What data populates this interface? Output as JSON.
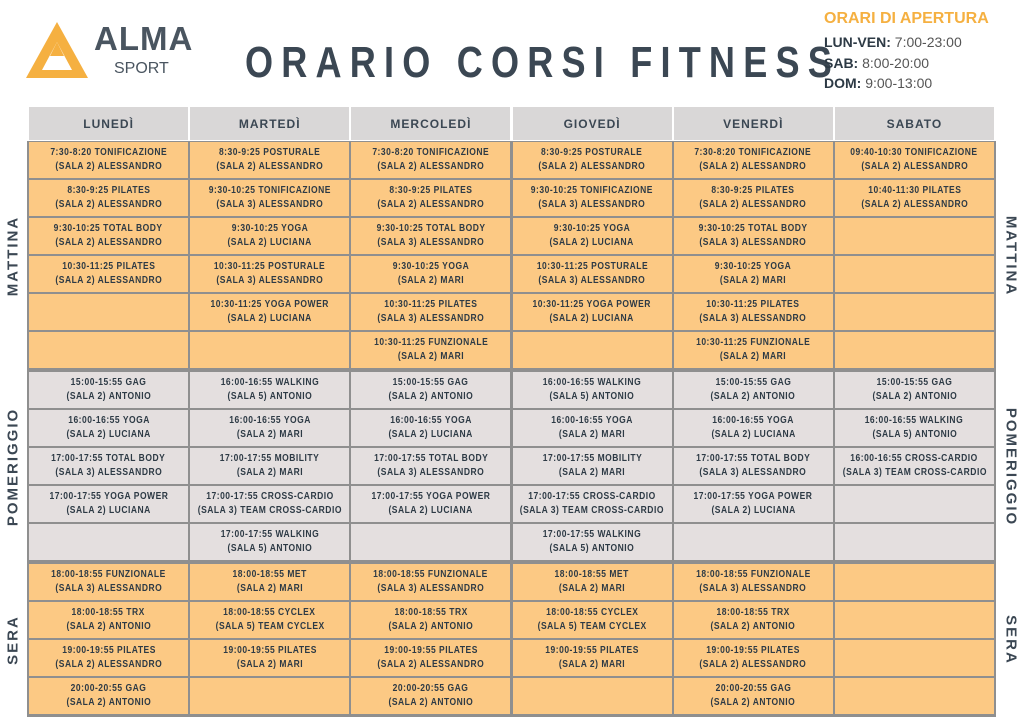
{
  "header": {
    "logo": {
      "name": "ALMA",
      "sub": "SPORT"
    },
    "title": "ORARIO CORSI FITNESS",
    "hours": {
      "title": "ORARI DI APERTURA",
      "rows": [
        [
          "LUN-VEN:",
          "7:00-23:00"
        ],
        [
          "SAB:",
          "8:00-20:00"
        ],
        [
          "DOM:",
          "9:00-13:00"
        ]
      ]
    }
  },
  "table": {
    "days": [
      "LUNEDÌ",
      "MARTEDÌ",
      "MERCOLEDÌ",
      "GIOVEDÌ",
      "VENERDÌ",
      "SABATO"
    ],
    "sections": [
      {
        "label": "MATTINA",
        "rows": [
          [
            [
              "7:30-8:20 TONIFICAZIONE",
              "(SALA 2) ALESSANDRO"
            ],
            [
              "8:30-9:25 POSTURALE",
              "(SALA 2) ALESSANDRO"
            ],
            [
              "7:30-8:20 TONIFICAZIONE",
              "(SALA 2) ALESSANDRO"
            ],
            [
              "8:30-9:25 POSTURALE",
              "(SALA 2) ALESSANDRO"
            ],
            [
              "7:30-8:20 TONIFICAZIONE",
              "(SALA 2) ALESSANDRO"
            ],
            [
              "09:40-10:30 TONIFICAZIONE",
              "(SALA 2) ALESSANDRO"
            ]
          ],
          [
            [
              "8:30-9:25 PILATES",
              "(SALA 2) ALESSANDRO"
            ],
            [
              "9:30-10:25 TONIFICAZIONE",
              "(SALA 3) ALESSANDRO"
            ],
            [
              "8:30-9:25 PILATES",
              "(SALA 2) ALESSANDRO"
            ],
            [
              "9:30-10:25 TONIFICAZIONE",
              "(SALA 3) ALESSANDRO"
            ],
            [
              "8:30-9:25 PILATES",
              "(SALA 2) ALESSANDRO"
            ],
            [
              "10:40-11:30 PILATES",
              "(SALA 2) ALESSANDRO"
            ]
          ],
          [
            [
              "9:30-10:25 TOTAL BODY",
              "(SALA 2) ALESSANDRO"
            ],
            [
              "9:30-10:25 YOGA",
              "(SALA 2) LUCIANA"
            ],
            [
              "9:30-10:25 TOTAL BODY",
              "(SALA 3) ALESSANDRO"
            ],
            [
              "9:30-10:25 YOGA",
              "(SALA 2) LUCIANA"
            ],
            [
              "9:30-10:25 TOTAL BODY",
              "(SALA 3) ALESSANDRO"
            ],
            null
          ],
          [
            [
              "10:30-11:25 PILATES",
              "(SALA 2) ALESSANDRO"
            ],
            [
              "10:30-11:25 POSTURALE",
              "(SALA 3) ALESSANDRO"
            ],
            [
              "9:30-10:25 YOGA",
              "(SALA 2) MARI"
            ],
            [
              "10:30-11:25 POSTURALE",
              "(SALA 3) ALESSANDRO"
            ],
            [
              "9:30-10:25 YOGA",
              "(SALA 2) MARI"
            ],
            null
          ],
          [
            null,
            [
              "10:30-11:25 YOGA POWER",
              "(SALA 2) LUCIANA"
            ],
            [
              "10:30-11:25 PILATES",
              "(SALA 3) ALESSANDRO"
            ],
            [
              "10:30-11:25 YOGA POWER",
              "(SALA 2) LUCIANA"
            ],
            [
              "10:30-11:25 PILATES",
              "(SALA 3) ALESSANDRO"
            ],
            null
          ],
          [
            null,
            null,
            [
              "10:30-11:25 FUNZIONALE",
              "(SALA 2) MARI"
            ],
            null,
            [
              "10:30-11:25 FUNZIONALE",
              "(SALA 2) MARI"
            ],
            null
          ]
        ]
      },
      {
        "label": "POMERIGGIO",
        "rows": [
          [
            [
              "15:00-15:55 GAG",
              "(SALA 2) ANTONIO"
            ],
            [
              "16:00-16:55 WALKING",
              "(SALA 5) ANTONIO"
            ],
            [
              "15:00-15:55 GAG",
              "(SALA 2) ANTONIO"
            ],
            [
              "16:00-16:55 WALKING",
              "(SALA 5) ANTONIO"
            ],
            [
              "15:00-15:55 GAG",
              "(SALA 2) ANTONIO"
            ],
            [
              "15:00-15:55 GAG",
              "(SALA 2) ANTONIO"
            ]
          ],
          [
            [
              "16:00-16:55 YOGA",
              "(SALA 2) LUCIANA"
            ],
            [
              "16:00-16:55 YOGA",
              "(SALA 2) MARI"
            ],
            [
              "16:00-16:55 YOGA",
              "(SALA 2) LUCIANA"
            ],
            [
              "16:00-16:55 YOGA",
              "(SALA 2) MARI"
            ],
            [
              "16:00-16:55 YOGA",
              "(SALA 2) LUCIANA"
            ],
            [
              "16:00-16:55 WALKING",
              "(SALA 5) ANTONIO"
            ]
          ],
          [
            [
              "17:00-17:55 TOTAL BODY",
              "(SALA 3) ALESSANDRO"
            ],
            [
              "17:00-17:55 MOBILITY",
              "(SALA 2) MARI"
            ],
            [
              "17:00-17:55 TOTAL BODY",
              "(SALA 3) ALESSANDRO"
            ],
            [
              "17:00-17:55 MOBILITY",
              "(SALA 2) MARI"
            ],
            [
              "17:00-17:55 TOTAL BODY",
              "(SALA 3) ALESSANDRO"
            ],
            [
              "16:00-16:55 CROSS-CARDIO",
              "(SALA 3) TEAM CROSS-CARDIO"
            ]
          ],
          [
            [
              "17:00-17:55 YOGA POWER",
              "(SALA 2) LUCIANA"
            ],
            [
              "17:00-17:55 CROSS-CARDIO",
              "(SALA 3) TEAM CROSS-CARDIO"
            ],
            [
              "17:00-17:55 YOGA POWER",
              "(SALA 2) LUCIANA"
            ],
            [
              "17:00-17:55 CROSS-CARDIO",
              "(SALA 3) TEAM CROSS-CARDIO"
            ],
            [
              "17:00-17:55 YOGA POWER",
              "(SALA 2) LUCIANA"
            ],
            null
          ],
          [
            null,
            [
              "17:00-17:55 WALKING",
              "(SALA 5) ANTONIO"
            ],
            null,
            [
              "17:00-17:55 WALKING",
              "(SALA 5) ANTONIO"
            ],
            null,
            null
          ]
        ]
      },
      {
        "label": "SERA",
        "rows": [
          [
            [
              "18:00-18:55 FUNZIONALE",
              "(SALA 3) ALESSANDRO"
            ],
            [
              "18:00-18:55 MET",
              "(SALA 2) MARI"
            ],
            [
              "18:00-18:55 FUNZIONALE",
              "(SALA 3) ALESSANDRO"
            ],
            [
              "18:00-18:55 MET",
              "(SALA 2) MARI"
            ],
            [
              "18:00-18:55 FUNZIONALE",
              "(SALA 3) ALESSANDRO"
            ],
            null
          ],
          [
            [
              "18:00-18:55 TRX",
              "(SALA 2) ANTONIO"
            ],
            [
              "18:00-18:55 CYCLEX",
              "(SALA 5) TEAM CYCLEX"
            ],
            [
              "18:00-18:55 TRX",
              "(SALA 2) ANTONIO"
            ],
            [
              "18:00-18:55 CYCLEX",
              "(SALA 5) TEAM CYCLEX"
            ],
            [
              "18:00-18:55 TRX",
              "(SALA 2) ANTONIO"
            ],
            null
          ],
          [
            [
              "19:00-19:55 PILATES",
              "(SALA 2) ALESSANDRO"
            ],
            [
              "19:00-19:55 PILATES",
              "(SALA 2) MARI"
            ],
            [
              "19:00-19:55 PILATES",
              "(SALA 2) ALESSANDRO"
            ],
            [
              "19:00-19:55 PILATES",
              "(SALA 2) MARI"
            ],
            [
              "19:00-19:55 PILATES",
              "(SALA 2) ALESSANDRO"
            ],
            null
          ],
          [
            [
              "20:00-20:55 GAG",
              "(SALA 2) ANTONIO"
            ],
            null,
            [
              "20:00-20:55 GAG",
              "(SALA 2) ANTONIO"
            ],
            null,
            [
              "20:00-20:55 GAG",
              "(SALA 2) ANTONIO"
            ],
            null
          ]
        ]
      }
    ]
  }
}
